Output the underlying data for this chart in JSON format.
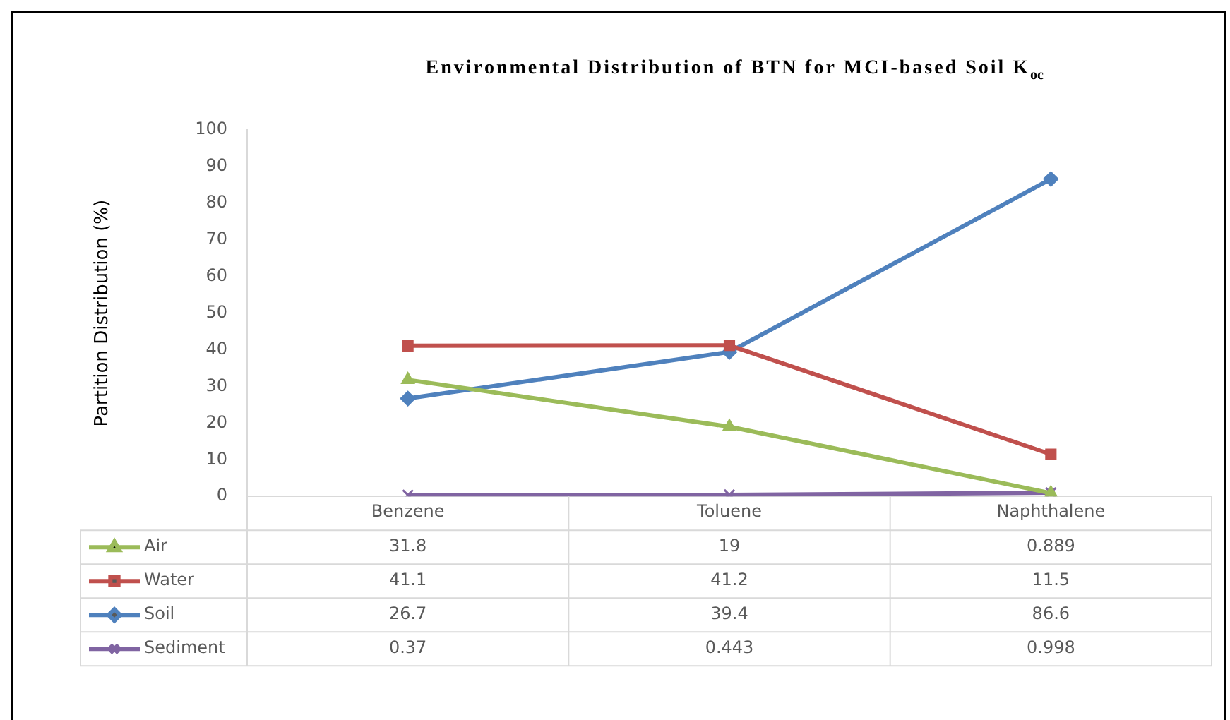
{
  "chart_data": {
    "type": "line",
    "title": "Environmental Distribution of BTN for MCI-based Soil K$_{oc}$",
    "ylabel": "Partition Distribution (%)",
    "categories": [
      "Benzene",
      "Toluene",
      "Naphthalene"
    ],
    "series": [
      {
        "name": "Air",
        "color": "#9bbb59",
        "marker": "triangle",
        "values": [
          31.8,
          19,
          0.889
        ]
      },
      {
        "name": "Water",
        "color": "#c0504d",
        "marker": "square",
        "values": [
          41.1,
          41.2,
          11.5
        ]
      },
      {
        "name": "Soil",
        "color": "#4f81bd",
        "marker": "diamond",
        "values": [
          26.7,
          39.4,
          86.6
        ]
      },
      {
        "name": "Sediment",
        "color": "#8064a2",
        "marker": "cross",
        "values": [
          0.37,
          0.443,
          0.998
        ]
      }
    ],
    "ylim": [
      0,
      100
    ],
    "yticks": [
      0,
      10,
      20,
      30,
      40,
      50,
      60,
      70,
      80,
      90,
      100
    ],
    "legend": "bottom",
    "data_labels": true
  }
}
